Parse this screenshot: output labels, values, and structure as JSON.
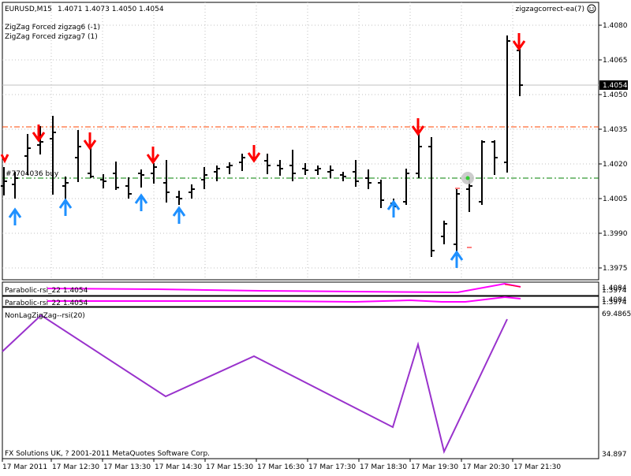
{
  "header": {
    "symbol_info": "EURUSD,M15",
    "ohlc": "1.4071 1.4073 1.4050 1.4054",
    "ea_name": "zigzagcorrect-ea(7)",
    "indicator1": "ZigZag Forced zigzag6 (-1)",
    "indicator2": "ZigZag Forced zigzag7 (1)"
  },
  "price_axis": {
    "labels": [
      "1.4080",
      "1.4065",
      "1.4050",
      "1.4035",
      "1.4020",
      "1.4005",
      "1.3990",
      "1.3975"
    ],
    "current_price": "1.4054"
  },
  "order_label": "#7704036 buy",
  "subwindows": {
    "psar1_label": "Parabolic-rsi_22 1.4054",
    "psar1_scale": [
      "1.4084",
      "1.3974"
    ],
    "psar2_label": "Parabolic-rsi_22 1.4054",
    "psar2_scale": [
      "1.4084",
      "1.3974"
    ],
    "nonlag_label": "NonLagZigZag--rsi(20)",
    "nonlag_scale": [
      "69.4865",
      "34.897"
    ]
  },
  "copyright": "FX Solutions UK, ? 2001-2011 MetaQuotes Software Corp.",
  "time_axis": [
    "17 Mar 2011",
    "17 Mar 12:30",
    "17 Mar 13:30",
    "17 Mar 14:30",
    "17 Mar 15:30",
    "17 Mar 16:30",
    "17 Mar 17:30",
    "17 Mar 18:30",
    "17 Mar 19:30",
    "17 Mar 20:30",
    "17 Mar 21:30"
  ],
  "colors": {
    "bars": "#000000",
    "down_arrow": "#ff0000",
    "up_arrow": "#1e90ff",
    "order_line": "#008000",
    "level_line": "#ff4500",
    "indicator_line": "#9932cc",
    "psar_line": "#ff00ff",
    "panel_border": "#000000",
    "grid": "#c0c0c0"
  },
  "chart_data": {
    "type": "candlestick",
    "bars": [
      {
        "h": 1.4025,
        "l": 1.3998,
        "o": 1.401,
        "c": 1.4018
      },
      {
        "h": 1.402,
        "l": 1.4,
        "o": 1.4014,
        "c": 1.4012
      },
      {
        "h": 1.403,
        "l": 1.401,
        "o": 1.4014,
        "c": 1.4026
      },
      {
        "h": 1.403,
        "l": 1.4015,
        "o": 1.4026,
        "c": 1.4028
      },
      {
        "h": 1.4036,
        "l": 1.4022,
        "o": 1.4028,
        "c": 1.4033
      },
      {
        "h": 1.4039,
        "l": 1.402,
        "o": 1.4033,
        "c": 1.4022
      },
      {
        "h": 1.403,
        "l": 1.4008,
        "o": 1.4022,
        "c": 1.401
      },
      {
        "h": 1.4018,
        "l": 1.4004,
        "o": 1.401,
        "c": 1.4014
      },
      {
        "h": 1.4035,
        "l": 1.4012,
        "o": 1.4014,
        "c": 1.4032
      },
      {
        "h": 1.4032,
        "l": 1.4015,
        "o": 1.403,
        "c": 1.4018
      },
      {
        "h": 1.4018,
        "l": 1.401,
        "o": 1.4017,
        "c": 1.4013
      },
      {
        "h": 1.4022,
        "l": 1.4008,
        "o": 1.4012,
        "c": 1.402
      },
      {
        "h": 1.402,
        "l": 1.401,
        "o": 1.4012,
        "c": 1.4011
      },
      {
        "h": 1.4014,
        "l": 1.4006,
        "o": 1.4012,
        "c": 1.4008
      },
      {
        "h": 1.4012,
        "l": 1.4006,
        "o": 1.4007,
        "c": 1.401
      },
      {
        "h": 1.4018,
        "l": 1.4006,
        "o": 1.401,
        "c": 1.4016
      },
      {
        "h": 1.4022,
        "l": 1.4016,
        "o": 1.4018,
        "c": 1.402
      },
      {
        "h": 1.4025,
        "l": 1.4017,
        "o": 1.4019,
        "c": 1.4024
      },
      {
        "h": 1.402,
        "l": 1.4004,
        "o": 1.401,
        "c": 1.4006
      },
      {
        "h": 1.401,
        "l": 1.4002,
        "o": 1.4008,
        "c": 1.4004
      },
      {
        "h": 1.4012,
        "l": 1.4004,
        "o": 1.4006,
        "c": 1.401
      },
      {
        "h": 1.4017,
        "l": 1.4008,
        "o": 1.401,
        "c": 1.4015
      },
      {
        "h": 1.402,
        "l": 1.4013,
        "o": 1.4014,
        "c": 1.4018
      },
      {
        "h": 1.402,
        "l": 1.4016,
        "o": 1.4017,
        "c": 1.4019
      },
      {
        "h": 1.4021,
        "l": 1.4016,
        "o": 1.4018,
        "c": 1.402
      },
      {
        "h": 1.4024,
        "l": 1.4016,
        "o": 1.402,
        "c": 1.4021
      },
      {
        "h": 1.4026,
        "l": 1.4018,
        "o": 1.402,
        "c": 1.4024
      },
      {
        "h": 1.4025,
        "l": 1.402,
        "o": 1.4023,
        "c": 1.4022
      },
      {
        "h": 1.4024,
        "l": 1.4018,
        "o": 1.4022,
        "c": 1.4019
      },
      {
        "h": 1.4022,
        "l": 1.4016,
        "o": 1.4019,
        "c": 1.4018
      },
      {
        "h": 1.402,
        "l": 1.4016,
        "o": 1.4018,
        "c": 1.4017
      },
      {
        "h": 1.4022,
        "l": 1.4014,
        "o": 1.4017,
        "c": 1.4016
      },
      {
        "h": 1.402,
        "l": 1.4014,
        "o": 1.4017,
        "c": 1.4018
      },
      {
        "h": 1.4019,
        "l": 1.4015,
        "o": 1.4016,
        "c": 1.4018
      },
      {
        "h": 1.4019,
        "l": 1.4016,
        "o": 1.4017,
        "c": 1.4017
      },
      {
        "h": 1.4018,
        "l": 1.4014,
        "o": 1.4016,
        "c": 1.4015
      },
      {
        "h": 1.4017,
        "l": 1.4013,
        "o": 1.4015,
        "c": 1.4016
      },
      {
        "h": 1.402,
        "l": 1.401,
        "o": 1.4016,
        "c": 1.4012
      },
      {
        "h": 1.4015,
        "l": 1.4008,
        "o": 1.4011,
        "c": 1.4012
      },
      {
        "h": 1.4014,
        "l": 1.4002,
        "o": 1.4012,
        "c": 1.4004
      },
      {
        "h": 1.4006,
        "l": 1.4,
        "o": 1.4004,
        "c": 1.4001
      },
      {
        "h": 1.4008,
        "l": 1.4,
        "o": 1.4002,
        "c": 1.4005
      },
      {
        "h": 1.4018,
        "l": 1.4004,
        "o": 1.4005,
        "c": 1.4015
      },
      {
        "h": 1.4032,
        "l": 1.4014,
        "o": 1.4016,
        "c": 1.4028
      },
      {
        "h": 1.403,
        "l": 1.398,
        "o": 1.4028,
        "c": 1.3985
      },
      {
        "h": 1.3998,
        "l": 1.398,
        "o": 1.3988,
        "c": 1.3996
      },
      {
        "h": 1.3994,
        "l": 1.3979,
        "o": 1.3988,
        "c": 1.3985
      },
      {
        "h": 1.401,
        "l": 1.3984,
        "o": 1.3986,
        "c": 1.4009
      },
      {
        "h": 1.4015,
        "l": 1.4,
        "o": 1.401,
        "c": 1.4013
      },
      {
        "h": 1.401,
        "l": 1.4002,
        "o": 1.4004,
        "c": 1.4006
      },
      {
        "h": 1.403,
        "l": 1.4005,
        "o": 1.4006,
        "c": 1.4028
      },
      {
        "h": 1.403,
        "l": 1.4018,
        "o": 1.4028,
        "c": 1.402
      },
      {
        "h": 1.4023,
        "l": 1.4017,
        "o": 1.4022,
        "c": 1.402
      },
      {
        "h": 1.4076,
        "l": 1.4018,
        "o": 1.402,
        "c": 1.4074
      },
      {
        "h": 1.4073,
        "l": 1.405,
        "o": 1.4071,
        "c": 1.4054
      }
    ],
    "down_arrows_at": [
      1,
      5,
      13,
      21,
      37,
      56
    ],
    "up_arrows_at": [
      0,
      4,
      9,
      13,
      20,
      53,
      63
    ],
    "nonlag_values": [
      58,
      69,
      41,
      57,
      38,
      64,
      36.5,
      69.4
    ],
    "psar_values": [
      0.55,
      0.53,
      0.5,
      0.48,
      0.46,
      0.45,
      0.44,
      0.45,
      0.5,
      1.2
    ]
  }
}
